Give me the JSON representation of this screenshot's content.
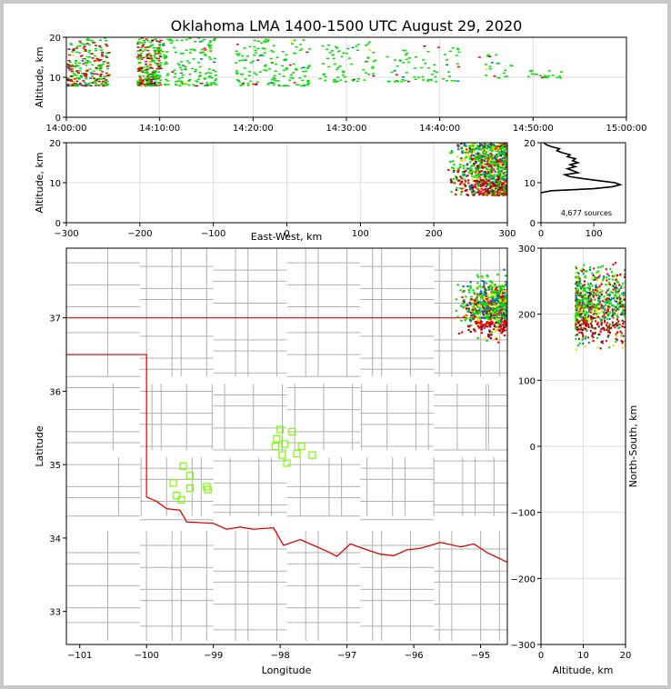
{
  "chart_data": [
    {
      "type": "scatter",
      "name": "altitude-vs-time",
      "title": "Oklahoma LMA 1400-1500 UTC August 29, 2020",
      "xlabel": "",
      "ylabel": "Altitude, km",
      "xlim_minutes": [
        0,
        60
      ],
      "ylim": [
        0,
        20
      ],
      "xticks": [
        {
          "minute": 0,
          "label": "14:00:00"
        },
        {
          "minute": 10,
          "label": "14:10:00"
        },
        {
          "minute": 20,
          "label": "14:20:00"
        },
        {
          "minute": 30,
          "label": "14:30:00"
        },
        {
          "minute": 40,
          "label": "14:40:00"
        },
        {
          "minute": 50,
          "label": "14:50:00"
        },
        {
          "minute": 60,
          "label": "15:00:00"
        }
      ],
      "yticks": [
        0,
        10,
        20
      ],
      "grid": true,
      "description": "VHF sources colored by time (red early to green later)",
      "source_bursts": [
        {
          "start_min": 0,
          "end_min": 4.5,
          "alt_lo": 8,
          "alt_hi": 20,
          "density": "high"
        },
        {
          "start_min": 7.5,
          "end_min": 10,
          "alt_lo": 8,
          "alt_hi": 20,
          "density": "high"
        },
        {
          "start_min": 10,
          "end_min": 16,
          "alt_lo": 8,
          "alt_hi": 20,
          "density": "medium"
        },
        {
          "start_min": 18,
          "end_min": 26,
          "alt_lo": 8,
          "alt_hi": 20,
          "density": "medium"
        },
        {
          "start_min": 27,
          "end_min": 33,
          "alt_lo": 9,
          "alt_hi": 19,
          "density": "low"
        },
        {
          "start_min": 34,
          "end_min": 42,
          "alt_lo": 9,
          "alt_hi": 18,
          "density": "low"
        },
        {
          "start_min": 44,
          "end_min": 48,
          "alt_lo": 10,
          "alt_hi": 16,
          "density": "sparse"
        },
        {
          "start_min": 49,
          "end_min": 53,
          "alt_lo": 10,
          "alt_hi": 12,
          "density": "sparse"
        }
      ]
    },
    {
      "type": "scatter",
      "name": "altitude-vs-east-west",
      "xlabel": "East-West, km",
      "ylabel": "Altitude, km",
      "xlim": [
        -300,
        300
      ],
      "ylim": [
        0,
        20
      ],
      "xticks": [
        -300,
        -200,
        -100,
        0,
        100,
        200,
        300
      ],
      "yticks": [
        0,
        10,
        20
      ],
      "grid": true,
      "cluster": {
        "ew_lo": 215,
        "ew_hi": 300,
        "core_ew": 270,
        "alt_lo": 7,
        "alt_hi": 20
      }
    },
    {
      "type": "line",
      "name": "altitude-histogram",
      "xlim": [
        0,
        160
      ],
      "ylim": [
        0,
        20
      ],
      "xticks": [
        0,
        100
      ],
      "yticks": [
        0,
        10,
        20
      ],
      "annotation": "4,677 sources",
      "profile": [
        {
          "alt": 7.5,
          "count": 0
        },
        {
          "alt": 8,
          "count": 20
        },
        {
          "alt": 8.5,
          "count": 100
        },
        {
          "alt": 9,
          "count": 135
        },
        {
          "alt": 9.5,
          "count": 150
        },
        {
          "alt": 10,
          "count": 140
        },
        {
          "alt": 10.5,
          "count": 110
        },
        {
          "alt": 11,
          "count": 80
        },
        {
          "alt": 11.5,
          "count": 55
        },
        {
          "alt": 12,
          "count": 45
        },
        {
          "alt": 12.5,
          "count": 70
        },
        {
          "alt": 13,
          "count": 60
        },
        {
          "alt": 13.5,
          "count": 50
        },
        {
          "alt": 14,
          "count": 65
        },
        {
          "alt": 14.5,
          "count": 55
        },
        {
          "alt": 15,
          "count": 70
        },
        {
          "alt": 15.5,
          "count": 60
        },
        {
          "alt": 16,
          "count": 65
        },
        {
          "alt": 16.5,
          "count": 50
        },
        {
          "alt": 17,
          "count": 55
        },
        {
          "alt": 17.5,
          "count": 40
        },
        {
          "alt": 18,
          "count": 30
        },
        {
          "alt": 18.5,
          "count": 35
        },
        {
          "alt": 19,
          "count": 20
        },
        {
          "alt": 19.5,
          "count": 10
        },
        {
          "alt": 20,
          "count": 5
        }
      ]
    },
    {
      "type": "scatter",
      "name": "map-longitude-latitude",
      "xlabel": "Longitude",
      "ylabel": "Latitude",
      "xlim": [
        -101.2,
        -94.6
      ],
      "ylim": [
        32.55,
        37.95
      ],
      "xticks": [
        -101,
        -100,
        -99,
        -98,
        -97,
        -96,
        -95
      ],
      "yticks": [
        33,
        34,
        35,
        36,
        37
      ],
      "stations": [
        [
          -99.45,
          34.98
        ],
        [
          -99.35,
          34.85
        ],
        [
          -99.6,
          34.75
        ],
        [
          -99.35,
          34.68
        ],
        [
          -99.55,
          34.58
        ],
        [
          -99.48,
          34.52
        ],
        [
          -99.1,
          34.7
        ],
        [
          -99.08,
          34.66
        ],
        [
          -98.0,
          35.48
        ],
        [
          -97.82,
          35.45
        ],
        [
          -98.05,
          35.35
        ],
        [
          -97.93,
          35.28
        ],
        [
          -98.07,
          35.25
        ],
        [
          -97.68,
          35.25
        ],
        [
          -97.97,
          35.13
        ],
        [
          -97.75,
          35.15
        ],
        [
          -97.52,
          35.13
        ],
        [
          -97.9,
          35.02
        ]
      ],
      "cluster": {
        "lon_lo": -95.4,
        "lon_hi": -94.6,
        "lat_lo": 36.6,
        "lat_hi": 37.7,
        "core_lat": 36.87
      }
    },
    {
      "type": "scatter",
      "name": "north-south-vs-altitude",
      "xlabel": "Altitude, km",
      "ylabel": "North-South, km",
      "xlim": [
        0,
        20
      ],
      "ylim": [
        -300,
        300
      ],
      "xticks": [
        0,
        10,
        20
      ],
      "yticks": [
        -300,
        -200,
        -100,
        0,
        100,
        200,
        300
      ],
      "grid": true,
      "cluster": {
        "alt_lo": 8,
        "alt_hi": 20,
        "ns_lo": 145,
        "ns_hi": 280,
        "core_ns": 180
      }
    }
  ],
  "colors": {
    "early": "#8b0a1a",
    "early2": "#ff0000",
    "mid": "#ffd700",
    "late": "#00dd00",
    "latest": "#0070c0",
    "state_border": "#e00000",
    "county_lines": "#b0b0b0",
    "grid": "#dddddd",
    "station": "#7cfc00"
  }
}
